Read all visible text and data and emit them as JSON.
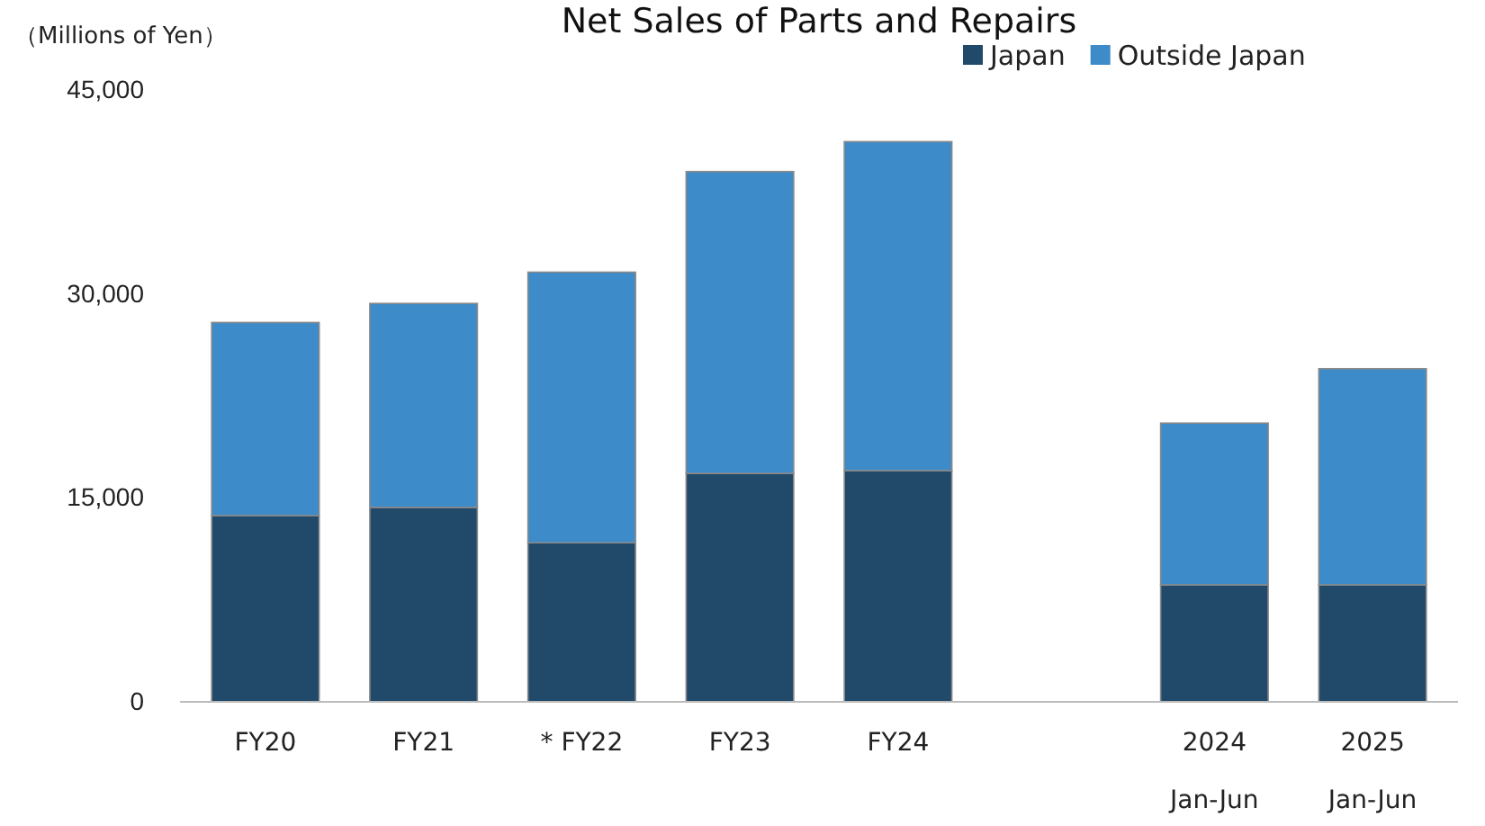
{
  "chart_data": {
    "type": "bar",
    "title": "Net Sales of Parts and Repairs",
    "ylabel": "（Millions of Yen）",
    "stacked": true,
    "legend": "top right",
    "grid": false,
    "categories": [
      "FY20",
      "FY21",
      "* FY22",
      "FY23",
      "FY24",
      null,
      "2024\nJan-Jun",
      "2025\nJan-Jun"
    ],
    "series": [
      {
        "name": "Japan",
        "color": "#214a6a",
        "values": [
          13700,
          14300,
          11700,
          16800,
          17000,
          null,
          8600,
          8600
        ]
      },
      {
        "name": "Outside Japan",
        "color": "#3d8bc8",
        "values": [
          14200,
          15000,
          19900,
          22200,
          24200,
          null,
          11900,
          15900
        ]
      }
    ],
    "ylim": [
      0,
      45000
    ],
    "yticks": [
      {
        "value": 0,
        "label": "0"
      },
      {
        "value": 15000,
        "label": "15,000"
      },
      {
        "value": 30000,
        "label": "30,000"
      },
      {
        "value": 45000,
        "label": "45,000"
      }
    ]
  }
}
